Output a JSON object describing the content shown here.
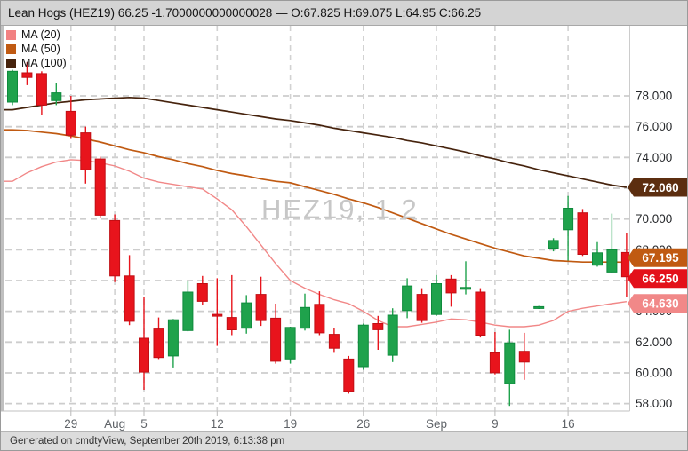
{
  "title_bar": {
    "text": "Lean Hogs (HEZ19) 66.25 -1.7000000000000028 — O:67.825 H:69.075 L:64.95 C:66.25"
  },
  "legend": {
    "items": [
      {
        "id": "ma-20",
        "label": "MA (20)",
        "color": "#F28182"
      },
      {
        "id": "ma-50",
        "label": "MA (50)",
        "color": "#C05A12"
      },
      {
        "id": "ma-100",
        "label": "MA (100)",
        "color": "#46230D"
      }
    ]
  },
  "watermark": "HEZ19, 1 2",
  "footer": {
    "text": "Generated on cmdtyView, September 20th 2019, 6:13:38 pm"
  },
  "chart_data": {
    "type": "candlestick",
    "symbol": "HEZ19",
    "title": "Lean Hogs (HEZ19)",
    "last": {
      "open": 67.825,
      "high": 69.075,
      "low": 64.95,
      "close": 66.25,
      "change": -1.7000000000000028
    },
    "colors": {
      "up": "#1FA24C",
      "up_border": "#0E8A3C",
      "down": "#E8141C",
      "down_border": "#C10E14"
    },
    "y_axis": {
      "side": "right",
      "range_shown": [
        57.5,
        82.5
      ],
      "ticks": [
        {
          "value": 78,
          "label": "78.000"
        },
        {
          "value": 76,
          "label": "76.000"
        },
        {
          "value": 74,
          "label": "74.000"
        },
        {
          "value": 72,
          "label": "72.000"
        },
        {
          "value": 70,
          "label": "70.000"
        },
        {
          "value": 68,
          "label": "68.000"
        },
        {
          "value": 66,
          "label": "66.000"
        },
        {
          "value": 64,
          "label": "64.000"
        },
        {
          "value": 62,
          "label": "62.000"
        },
        {
          "value": 60,
          "label": "60.000"
        },
        {
          "value": 58,
          "label": "58.000"
        }
      ]
    },
    "x_axis": {
      "ticks": [
        {
          "index": 4,
          "label": "29"
        },
        {
          "index": 7,
          "label": "Aug"
        },
        {
          "index": 9,
          "label": "5"
        },
        {
          "index": 14,
          "label": "12"
        },
        {
          "index": 19,
          "label": "19"
        },
        {
          "index": 24,
          "label": "26"
        },
        {
          "index": 29,
          "label": "Sep"
        },
        {
          "index": 33,
          "label": "9"
        },
        {
          "index": 38,
          "label": "16"
        }
      ]
    },
    "candle_columns": [
      "open",
      "high",
      "low",
      "close"
    ],
    "candles": [
      [
        77.6,
        79.7,
        77.4,
        79.6
      ],
      [
        79.5,
        80.2,
        78.7,
        79.2
      ],
      [
        79.45,
        79.6,
        76.75,
        77.4
      ],
      [
        77.7,
        78.85,
        77.4,
        78.2
      ],
      [
        77.0,
        78.0,
        75.2,
        75.45
      ],
      [
        75.6,
        76.0,
        72.3,
        73.2
      ],
      [
        73.9,
        74.05,
        70.1,
        70.25
      ],
      [
        69.9,
        70.3,
        65.9,
        66.3
      ],
      [
        66.3,
        67.65,
        63.1,
        63.35
      ],
      [
        62.25,
        64.95,
        58.9,
        60.05
      ],
      [
        62.85,
        63.6,
        60.9,
        61.0
      ],
      [
        61.1,
        63.5,
        60.35,
        63.45
      ],
      [
        62.75,
        66.0,
        62.7,
        65.25
      ],
      [
        65.8,
        66.3,
        64.4,
        64.65
      ],
      [
        63.8,
        66.15,
        61.75,
        63.7
      ],
      [
        63.6,
        66.35,
        62.45,
        62.8
      ],
      [
        62.9,
        65.05,
        62.55,
        64.55
      ],
      [
        65.1,
        66.25,
        63.05,
        63.4
      ],
      [
        63.55,
        64.5,
        60.6,
        60.75
      ],
      [
        60.9,
        63.0,
        60.6,
        62.95
      ],
      [
        62.9,
        65.15,
        62.75,
        64.25
      ],
      [
        64.45,
        65.3,
        62.45,
        62.6
      ],
      [
        62.5,
        62.9,
        61.3,
        61.6
      ],
      [
        60.9,
        61.1,
        58.65,
        58.8
      ],
      [
        60.4,
        63.2,
        60.2,
        63.1
      ],
      [
        63.2,
        63.7,
        61.5,
        62.8
      ],
      [
        61.15,
        64.2,
        60.7,
        63.75
      ],
      [
        64.05,
        66.15,
        63.55,
        65.65
      ],
      [
        65.1,
        65.5,
        63.25,
        63.4
      ],
      [
        63.8,
        66.35,
        63.7,
        65.8
      ],
      [
        66.1,
        66.35,
        64.3,
        65.2
      ],
      [
        65.5,
        67.25,
        65.1,
        65.55
      ],
      [
        65.25,
        65.5,
        62.3,
        62.45
      ],
      [
        61.3,
        62.65,
        59.9,
        60.0
      ],
      [
        59.3,
        62.8,
        57.85,
        61.95
      ],
      [
        61.4,
        62.6,
        59.55,
        60.7
      ],
      [
        64.25,
        64.35,
        64.15,
        64.3
      ],
      [
        68.1,
        68.75,
        67.9,
        68.6
      ],
      [
        69.3,
        71.5,
        67.3,
        70.7
      ],
      [
        70.4,
        70.65,
        67.6,
        67.7
      ],
      [
        67.0,
        68.5,
        66.9,
        67.8
      ],
      [
        66.55,
        70.35,
        66.5,
        68.0
      ],
      [
        67.825,
        69.075,
        64.95,
        66.25
      ]
    ],
    "overlays": [
      {
        "id": "ma-100",
        "name": "MA (100)",
        "color": "#46230D",
        "width": 1.7,
        "values": [
          77.1,
          77.25,
          77.4,
          77.55,
          77.65,
          77.75,
          77.8,
          77.85,
          77.9,
          77.85,
          77.7,
          77.55,
          77.4,
          77.25,
          77.1,
          76.95,
          76.8,
          76.65,
          76.5,
          76.4,
          76.25,
          76.1,
          75.9,
          75.75,
          75.6,
          75.45,
          75.3,
          75.1,
          74.95,
          74.75,
          74.55,
          74.35,
          74.1,
          73.9,
          73.65,
          73.45,
          73.2,
          73.0,
          72.8,
          72.6,
          72.4,
          72.2,
          72.06
        ]
      },
      {
        "id": "ma-50",
        "name": "MA (50)",
        "color": "#C05A12",
        "width": 1.7,
        "values": [
          75.8,
          75.75,
          75.65,
          75.55,
          75.4,
          75.2,
          75.0,
          74.75,
          74.5,
          74.3,
          74.05,
          73.85,
          73.6,
          73.4,
          73.15,
          72.95,
          72.8,
          72.6,
          72.45,
          72.35,
          72.1,
          71.85,
          71.6,
          71.3,
          71.05,
          70.75,
          70.4,
          70.05,
          69.7,
          69.35,
          69.0,
          68.7,
          68.4,
          68.1,
          67.85,
          67.6,
          67.45,
          67.3,
          67.25,
          67.2,
          67.2,
          67.2,
          67.195
        ]
      },
      {
        "id": "ma-20",
        "name": "MA (20)",
        "color": "#F18787",
        "width": 1.4,
        "values": [
          72.45,
          73.0,
          73.4,
          73.7,
          73.85,
          73.8,
          73.65,
          73.45,
          73.1,
          72.65,
          72.4,
          72.25,
          72.1,
          71.95,
          71.3,
          70.6,
          69.5,
          68.3,
          67.1,
          66.0,
          65.5,
          65.1,
          64.75,
          64.5,
          64.0,
          63.4,
          63.0,
          63.0,
          63.15,
          63.3,
          63.5,
          63.45,
          63.3,
          63.1,
          63.0,
          63.0,
          63.1,
          63.4,
          64.0,
          64.2,
          64.35,
          64.5,
          64.63
        ]
      }
    ],
    "price_labels": [
      {
        "series": "MA (100)",
        "value": 72.06,
        "label": "72.060",
        "color": "#5C2E10"
      },
      {
        "series": "MA (50)",
        "value": 67.195,
        "label": "67.195",
        "color": "#C05A12"
      },
      {
        "series": "last-price",
        "value": 66.25,
        "label": "66.250",
        "color": "#E3111A"
      },
      {
        "series": "MA (20)",
        "value": 64.63,
        "label": "64.630",
        "color": "#F18888"
      }
    ]
  }
}
